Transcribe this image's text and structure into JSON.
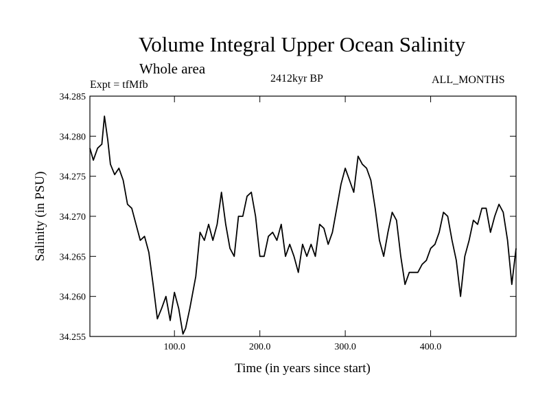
{
  "chart_data": {
    "type": "line",
    "title": "Volume Integral Upper Ocean Salinity",
    "subtitle": "Whole area",
    "experiment_label": "Expt = tfMfb",
    "period_label": "2412kyr BP",
    "months_label": "ALL_MONTHS",
    "xlabel": "Time (in years since start)",
    "ylabel": "Salinity (in PSU)",
    "xlim": [
      1,
      500
    ],
    "ylim": [
      34.255,
      34.285
    ],
    "x_ticks": [
      100,
      200,
      300,
      400
    ],
    "x_tick_labels": [
      "100.0",
      "200.0",
      "300.0",
      "400.0"
    ],
    "y_ticks": [
      34.255,
      34.26,
      34.265,
      34.27,
      34.275,
      34.28,
      34.285
    ],
    "y_tick_labels": [
      "34.255",
      "34.260",
      "34.265",
      "34.270",
      "34.275",
      "34.280",
      "34.285"
    ],
    "grid": false,
    "series": [
      {
        "name": "Salinity",
        "x": [
          1,
          5,
          10,
          15,
          18,
          22,
          25,
          30,
          35,
          40,
          45,
          50,
          55,
          60,
          65,
          70,
          75,
          80,
          85,
          90,
          95,
          100,
          105,
          110,
          113,
          118,
          125,
          130,
          135,
          140,
          145,
          150,
          155,
          160,
          165,
          170,
          175,
          180,
          185,
          190,
          195,
          200,
          205,
          210,
          215,
          220,
          225,
          230,
          235,
          240,
          245,
          250,
          255,
          260,
          265,
          270,
          275,
          280,
          285,
          290,
          295,
          300,
          305,
          310,
          315,
          320,
          325,
          330,
          335,
          340,
          345,
          350,
          355,
          360,
          365,
          370,
          375,
          380,
          385,
          390,
          395,
          400,
          405,
          410,
          415,
          420,
          425,
          430,
          435,
          440,
          445,
          450,
          455,
          460,
          465,
          470,
          475,
          480,
          485,
          490,
          495,
          500
        ],
        "values": [
          34.2785,
          34.277,
          34.2785,
          34.279,
          34.2825,
          34.2795,
          34.2765,
          34.2752,
          34.276,
          34.2745,
          34.2715,
          34.271,
          34.269,
          34.267,
          34.2675,
          34.2655,
          34.2615,
          34.2572,
          34.2585,
          34.26,
          34.257,
          34.2605,
          34.2585,
          34.2553,
          34.256,
          34.2585,
          34.2625,
          34.268,
          34.267,
          34.269,
          34.267,
          34.269,
          34.273,
          34.269,
          34.266,
          34.265,
          34.27,
          34.27,
          34.2725,
          34.273,
          34.27,
          34.265,
          34.265,
          34.2675,
          34.268,
          34.267,
          34.269,
          34.265,
          34.2665,
          34.265,
          34.263,
          34.2665,
          34.265,
          34.2665,
          34.265,
          34.269,
          34.2685,
          34.2665,
          34.268,
          34.271,
          34.274,
          34.276,
          34.2745,
          34.273,
          34.2775,
          34.2765,
          34.276,
          34.2745,
          34.271,
          34.267,
          34.265,
          34.268,
          34.2705,
          34.2695,
          34.265,
          34.2615,
          34.263,
          34.263,
          34.263,
          34.264,
          34.2645,
          34.266,
          34.2665,
          34.268,
          34.2705,
          34.27,
          34.267,
          34.2645,
          34.26,
          34.265,
          34.267,
          34.2695,
          34.269,
          34.271,
          34.271,
          34.268,
          34.27,
          34.2715,
          34.2705,
          34.267,
          34.2615,
          34.266
        ]
      }
    ]
  }
}
